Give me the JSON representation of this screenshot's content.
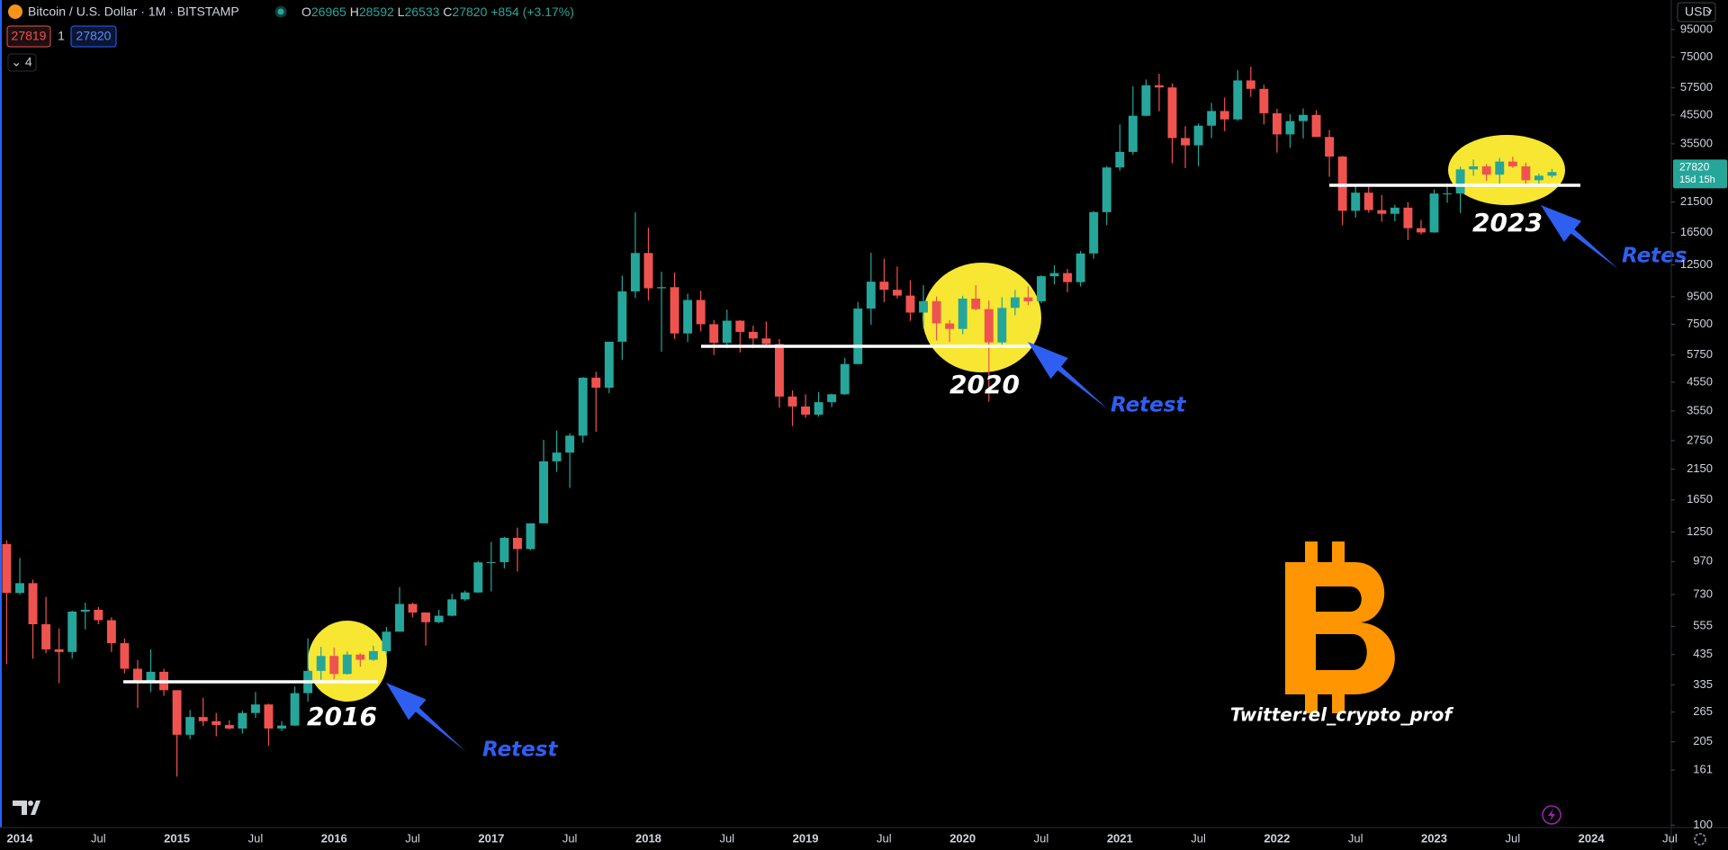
{
  "chart_data": {
    "type": "candlestick",
    "title": "Bitcoin / U.S. Dollar · 1M · BITSTAMP",
    "ohlc_labels": [
      "O",
      "H",
      "L",
      "C"
    ],
    "change": "+854 (+3.17%)",
    "bid": "27819",
    "spread": "1",
    "indicator_count": "⌄ 4",
    "currency": "USD",
    "countdown": "15d 15h",
    "log_scale": true,
    "grid": false,
    "up_color": "#26a69a",
    "down_color": "#ef5350",
    "ylim": [
      98,
      122600
    ],
    "yticks": [
      100,
      161,
      205,
      265,
      335,
      435,
      555,
      730,
      970,
      1250,
      1650,
      2150,
      2750,
      3550,
      4550,
      5750,
      7500,
      9500,
      12500,
      16500,
      21500,
      35500,
      45500,
      57500,
      75000,
      95000
    ],
    "categories": [
      null,
      "2014",
      null,
      null,
      null,
      null,
      null,
      "Jul",
      null,
      null,
      null,
      null,
      null,
      "2015",
      null,
      null,
      null,
      null,
      null,
      "Jul",
      null,
      null,
      null,
      null,
      null,
      "2016",
      null,
      null,
      null,
      null,
      null,
      "Jul",
      null,
      null,
      null,
      null,
      null,
      "2017",
      null,
      null,
      null,
      null,
      null,
      "Jul",
      null,
      null,
      null,
      null,
      null,
      "2018",
      null,
      null,
      null,
      null,
      null,
      "Jul",
      null,
      null,
      null,
      null,
      null,
      "2019",
      null,
      null,
      null,
      null,
      null,
      "Jul",
      null,
      null,
      null,
      null,
      null,
      "2020",
      null,
      null,
      null,
      null,
      null,
      "Jul",
      null,
      null,
      null,
      null,
      null,
      "2021",
      null,
      null,
      null,
      null,
      null,
      "Jul",
      null,
      null,
      null,
      null,
      null,
      "2022",
      null,
      null,
      null,
      null,
      null,
      "Jul",
      null,
      null,
      null,
      null,
      null,
      "2023",
      null,
      null,
      null,
      null,
      null,
      "Jul",
      null,
      null,
      null,
      null,
      null,
      "2024",
      null,
      null,
      null,
      null,
      null,
      "Jul"
    ],
    "open": [
      1128,
      740,
      805,
      565,
      455,
      445,
      630,
      640,
      585,
      480,
      385,
      340,
      375,
      320,
      218,
      254,
      245,
      237,
      230,
      263,
      283,
      230,
      236,
      312,
      378,
      430,
      368,
      435,
      416,
      448,
      530,
      673,
      625,
      575,
      608,
      700,
      743,
      963,
      965,
      1190,
      1080,
      1348,
      2300,
      2480,
      2870,
      4730,
      4340,
      6450,
      9950,
      13850,
      10220,
      10320,
      6925,
      9240,
      7500,
      6390,
      7730,
      7020,
      6630,
      6320,
      4020,
      3690,
      3440,
      3830,
      4100,
      5320,
      8580,
      10820,
      10090,
      9600,
      8290,
      9150,
      7550,
      7200,
      9350,
      8540,
      6410,
      8630,
      9450,
      9140,
      11340,
      11650,
      10780,
      13800,
      19700,
      28950,
      33100,
      45200,
      58800,
      57700,
      37300,
      35040,
      41500,
      47100,
      43820,
      61300,
      57000,
      46200,
      38500,
      43180,
      45530,
      37650,
      31800,
      19930,
      23300,
      20050,
      19420,
      20480,
      17160,
      16540,
      23130,
      23140,
      28480,
      29240,
      27210,
      30470,
      29230,
      25940,
      26965,
      null,
      null,
      null,
      null,
      null,
      null,
      null,
      null,
      null
    ],
    "high": [
      1163,
      1000,
      830,
      715,
      545,
      635,
      680,
      655,
      600,
      500,
      415,
      455,
      385,
      320,
      270,
      300,
      263,
      247,
      268,
      315,
      285,
      245,
      330,
      500,
      465,
      462,
      447,
      440,
      470,
      552,
      778,
      680,
      625,
      640,
      735,
      755,
      975,
      1150,
      1200,
      1300,
      1350,
      2770,
      3000,
      2930,
      4750,
      4980,
      6450,
      11400,
      19666,
      17250,
      11800,
      11700,
      9760,
      10000,
      7780,
      8500,
      7760,
      7410,
      7680,
      6600,
      4240,
      4100,
      4180,
      4120,
      5600,
      9080,
      13880,
      13200,
      12330,
      10950,
      10500,
      9520,
      7770,
      9580,
      10500,
      9200,
      9460,
      10080,
      10380,
      11440,
      12470,
      12070,
      14100,
      19890,
      29300,
      41950,
      58330,
      61780,
      64900,
      59600,
      41300,
      42300,
      50500,
      52900,
      67000,
      69000,
      59050,
      47990,
      45800,
      48200,
      47450,
      40000,
      31980,
      24670,
      25210,
      22800,
      20990,
      21470,
      18400,
      23960,
      25250,
      29190,
      31000,
      29830,
      31400,
      31800,
      30200,
      27480,
      28592,
      null,
      null,
      null,
      null,
      null,
      null,
      null,
      null,
      null
    ],
    "low": [
      400,
      730,
      420,
      440,
      340,
      420,
      540,
      565,
      445,
      370,
      275,
      315,
      305,
      152,
      210,
      235,
      215,
      228,
      220,
      252,
      198,
      225,
      235,
      290,
      350,
      352,
      366,
      392,
      412,
      436,
      530,
      600,
      470,
      570,
      605,
      690,
      740,
      750,
      915,
      890,
      1070,
      1350,
      2100,
      1830,
      2700,
      2970,
      4140,
      5520,
      9400,
      9200,
      5920,
      6600,
      6430,
      7050,
      5750,
      6100,
      5880,
      6100,
      6200,
      3650,
      3120,
      3350,
      3380,
      3670,
      4080,
      5320,
      7460,
      9080,
      9360,
      7720,
      7300,
      6520,
      6430,
      6870,
      8450,
      3850,
      6150,
      8100,
      8830,
      8990,
      10560,
      9890,
      10380,
      13200,
      17600,
      28150,
      32300,
      44960,
      47000,
      30000,
      28800,
      29300,
      37300,
      39600,
      43300,
      53200,
      41970,
      32900,
      34300,
      37200,
      37700,
      26700,
      17600,
      18800,
      19600,
      18130,
      18190,
      15480,
      16260,
      16500,
      21370,
      19570,
      26940,
      25800,
      24780,
      28860,
      25200,
      24900,
      26533,
      null,
      null,
      null,
      null,
      null,
      null,
      null,
      null,
      null
    ],
    "close": [
      740,
      805,
      565,
      455,
      445,
      630,
      640,
      585,
      480,
      385,
      340,
      375,
      320,
      218,
      254,
      245,
      237,
      230,
      263,
      283,
      230,
      236,
      312,
      378,
      430,
      368,
      435,
      416,
      448,
      530,
      673,
      625,
      575,
      608,
      700,
      743,
      963,
      965,
      1190,
      1080,
      1348,
      2300,
      2480,
      2870,
      4730,
      4340,
      6450,
      9950,
      13850,
      10220,
      10320,
      6925,
      9240,
      7500,
      6390,
      7730,
      7020,
      6630,
      6320,
      4020,
      3690,
      3440,
      3830,
      4100,
      5320,
      8580,
      10820,
      10090,
      9600,
      8290,
      9150,
      7550,
      7200,
      9350,
      8540,
      6410,
      8630,
      9450,
      9140,
      11340,
      11650,
      10780,
      13800,
      19700,
      28950,
      33100,
      45200,
      58800,
      57700,
      37300,
      35040,
      41500,
      47100,
      43820,
      61300,
      57000,
      46200,
      38500,
      43180,
      45530,
      37650,
      31800,
      19930,
      23300,
      20050,
      19420,
      20480,
      17160,
      16540,
      23130,
      23140,
      28480,
      29240,
      27210,
      30470,
      29230,
      25940,
      26965,
      27820,
      null,
      null,
      null,
      null,
      null,
      null,
      null,
      null,
      null
    ],
    "annotations": [
      "2016",
      "Retest",
      "2020",
      "Retest",
      "2023",
      "Retes"
    ],
    "watermark": "Twitter:el_crypto_prof"
  }
}
